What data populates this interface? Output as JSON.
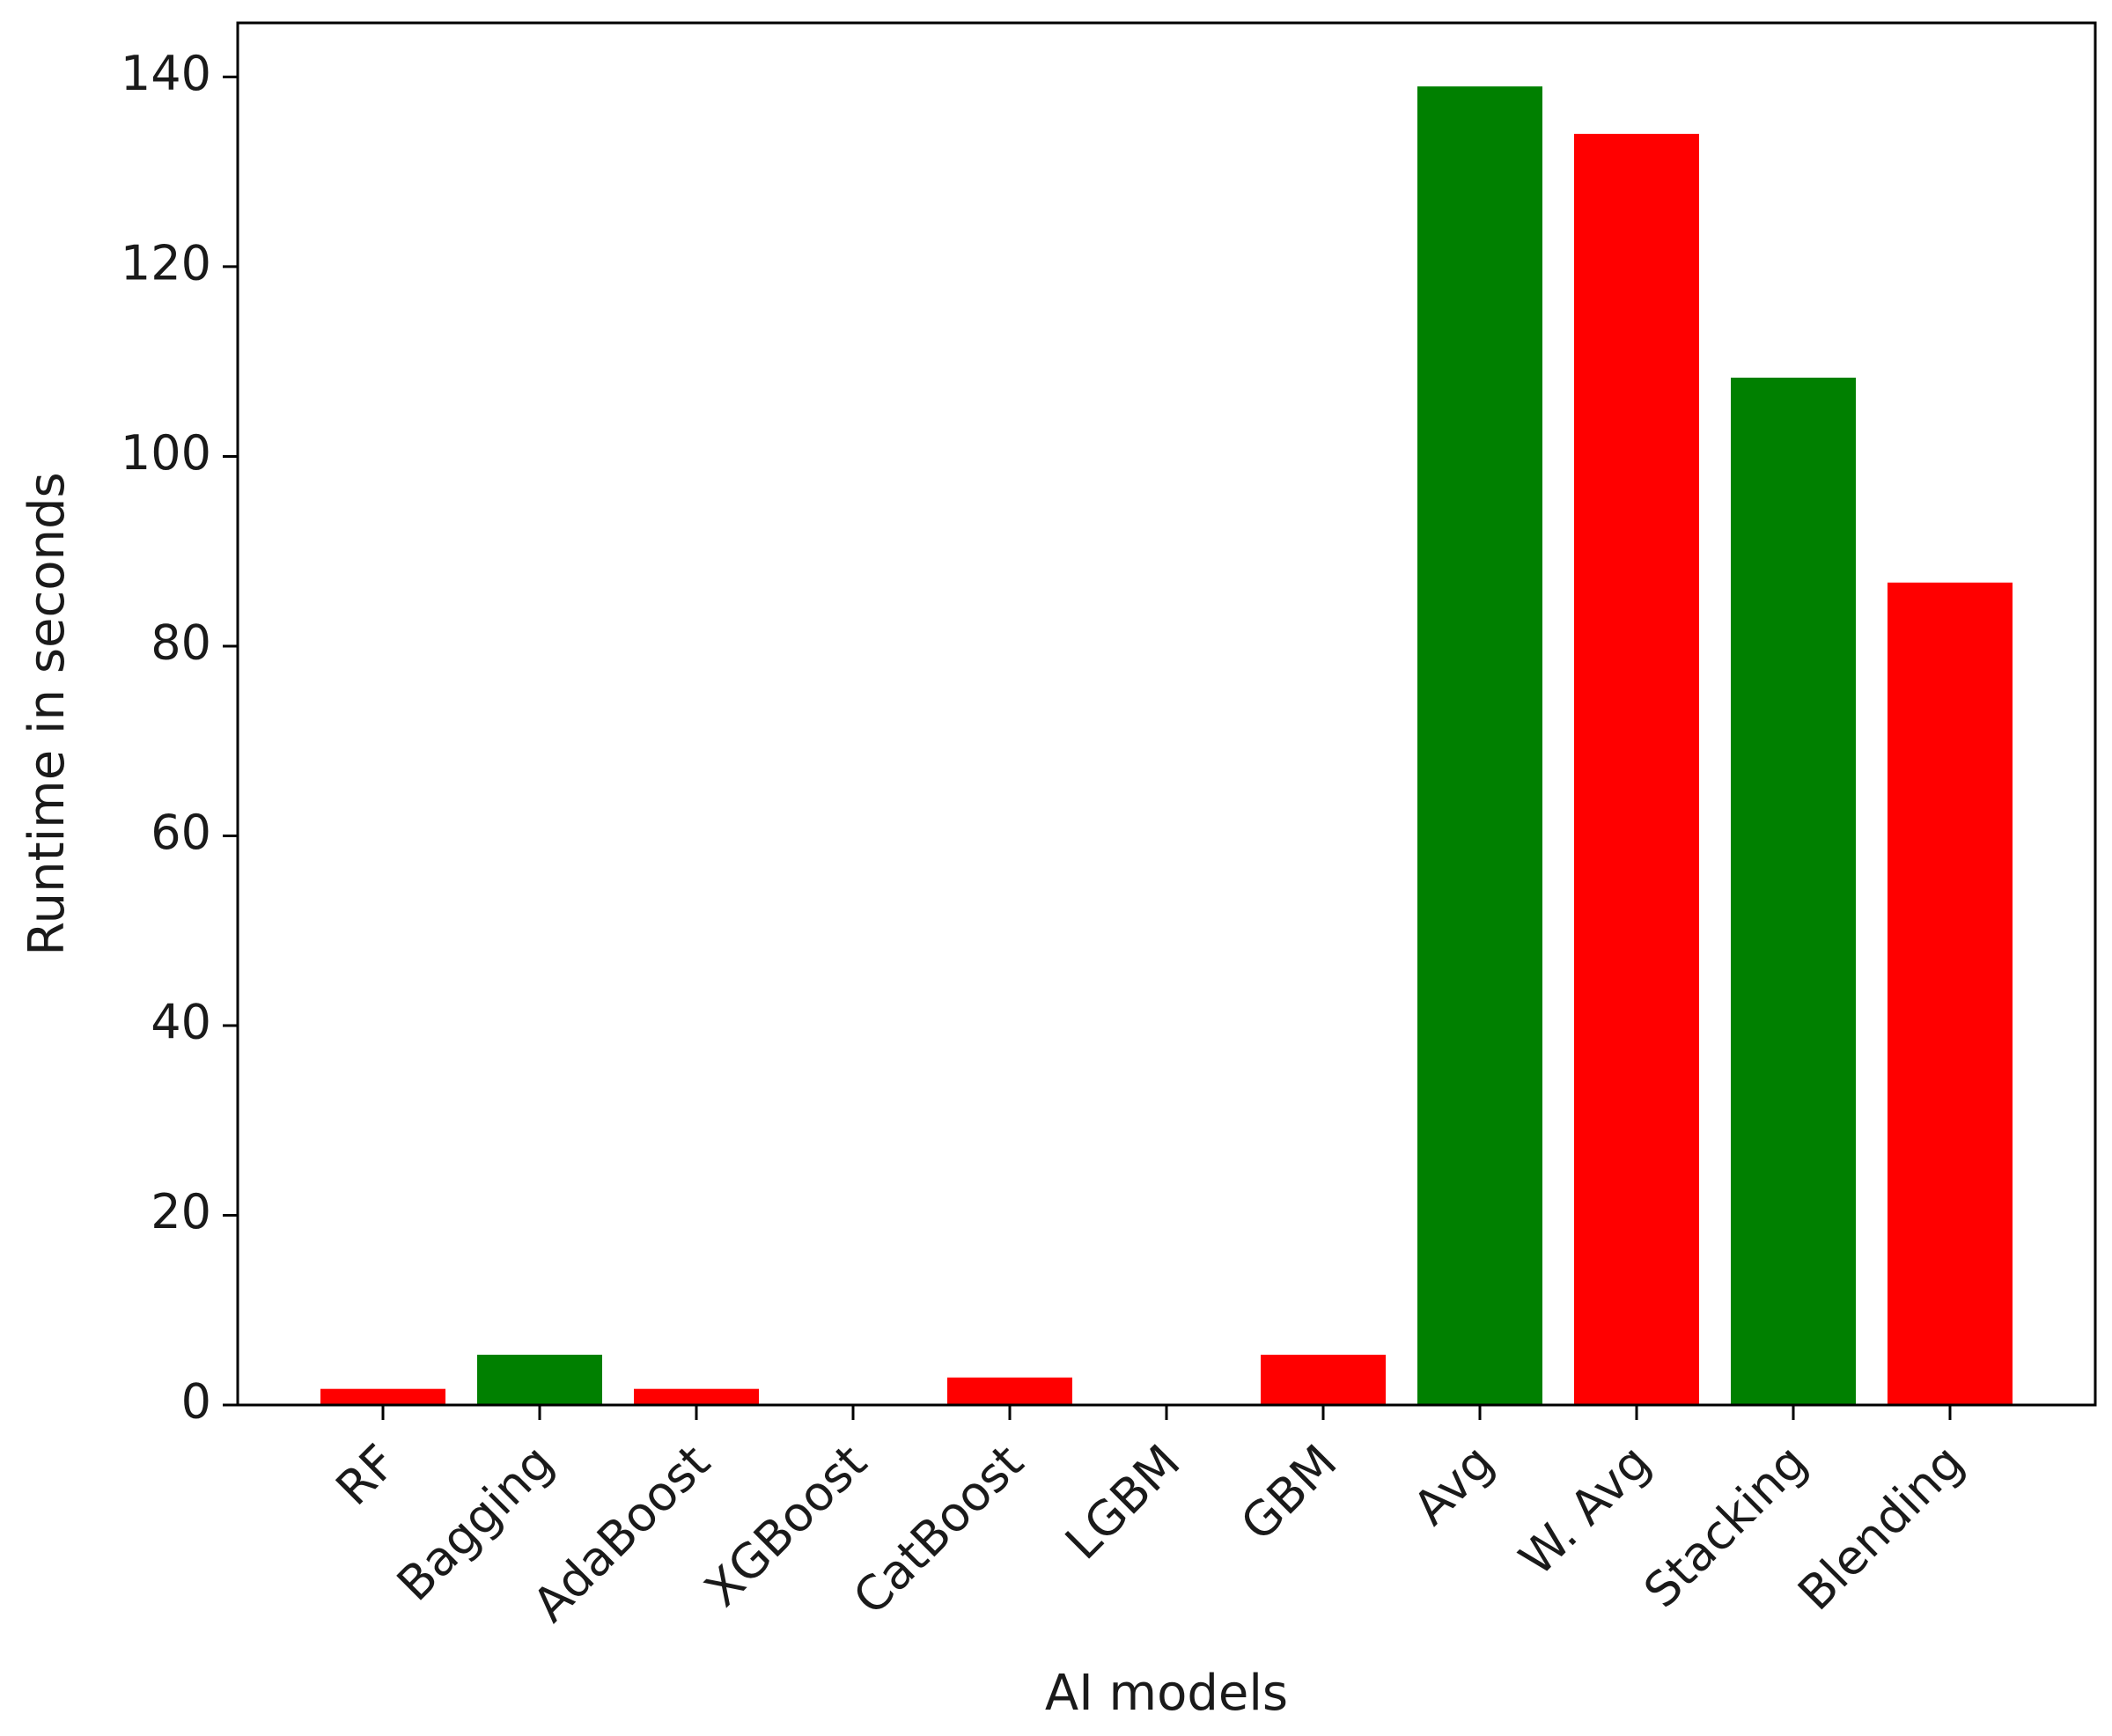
{
  "chart_data": {
    "type": "bar",
    "title": "",
    "xlabel": "AI models",
    "ylabel": "Runtime in seconds",
    "categories": [
      "RF",
      "Bagging",
      "AdaBoost",
      "XGBoost",
      "CatBoost",
      "LGBM",
      "GBM",
      "Avg",
      "W. Avg",
      "Stacking",
      "Blending"
    ],
    "values": [
      1.7,
      5.3,
      1.7,
      0.1,
      2.9,
      0.05,
      5.3,
      139,
      134,
      108.3,
      86.7
    ],
    "bar_colors": [
      "#ff0000",
      "#008000",
      "#ff0000",
      "#008000",
      "#ff0000",
      "#008000",
      "#ff0000",
      "#008000",
      "#ff0000",
      "#008000",
      "#ff0000"
    ],
    "ylim": [
      0,
      145.7
    ],
    "yticks": [
      0,
      20,
      40,
      60,
      80,
      100,
      120,
      140
    ],
    "grid": false,
    "legend": "none"
  }
}
